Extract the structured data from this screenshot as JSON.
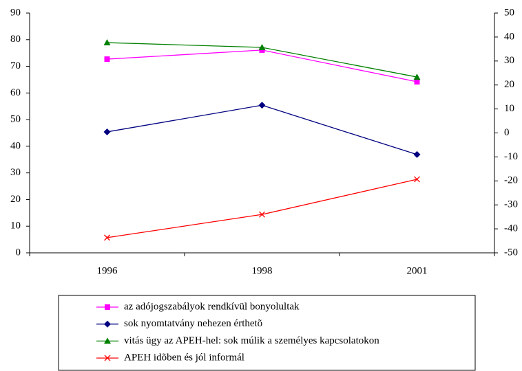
{
  "chart_data": {
    "type": "line",
    "categories": [
      "1996",
      "1998",
      "2001"
    ],
    "series": [
      {
        "name": "az adójogszabályok rendkívül bonyolultak",
        "color": "#ff00ff",
        "marker": "square",
        "values": [
          72.7,
          76.1,
          64.2
        ]
      },
      {
        "name": "sok nyomtatvány nehezen érthetõ",
        "color": "#000080",
        "marker": "diamond",
        "values": [
          45.4,
          55.4,
          36.9
        ]
      },
      {
        "name": "vitás ügy az APEH-hel: sok múlik a személyes kapcsolatokon",
        "color": "#008000",
        "marker": "triangle",
        "values": [
          78.9,
          77.1,
          66.0
        ]
      },
      {
        "name": "APEH idõben és jól informál",
        "color": "#ff0000",
        "marker": "x",
        "values": [
          5.7,
          14.4,
          27.6
        ]
      }
    ],
    "ylim": [
      0,
      90
    ],
    "yticks": [
      0,
      10,
      20,
      30,
      40,
      50,
      60,
      70,
      80,
      90
    ],
    "y2lim": [
      -50,
      50
    ],
    "y2ticks": [
      -50,
      -40,
      -30,
      -20,
      -10,
      0,
      10,
      20,
      30,
      40,
      50
    ],
    "grid": false,
    "legend": "bottom"
  }
}
